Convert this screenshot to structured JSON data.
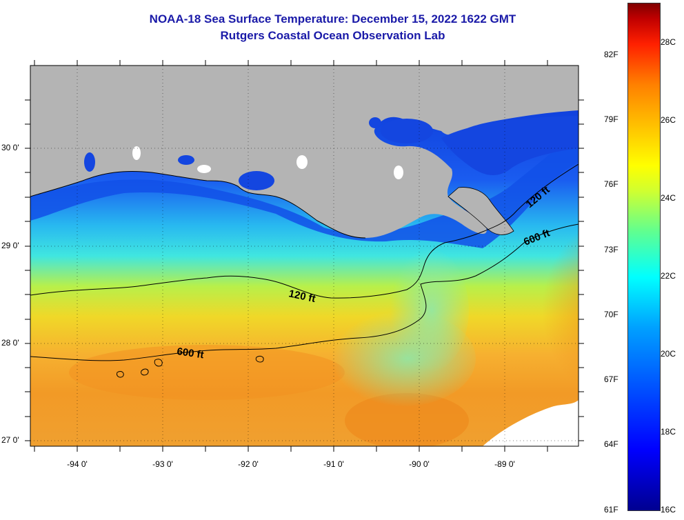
{
  "title": {
    "line1": "NOAA-18 Sea Surface Temperature:  December 15, 2022 1622 GMT",
    "line2": "Rutgers Coastal Ocean Observation Lab"
  },
  "map": {
    "lat_labels": [
      "30 0'",
      "29 0'",
      "28 0'",
      "27 0'"
    ],
    "lon_labels": [
      "-94 0'",
      "-93 0'",
      "-92 0'",
      "-91 0'",
      "-90 0'",
      "-89 0'"
    ],
    "contour_labels": [
      "120 ft",
      "600 ft",
      "120 ft",
      "600 ft"
    ],
    "colors": {
      "land": "#b4b4b4",
      "cold": "#0a3ccd",
      "mid": "#30e0e8",
      "warm": "#f29a24"
    }
  },
  "colorbar": {
    "fahrenheit": [
      "82F",
      "79F",
      "76F",
      "73F",
      "70F",
      "67F",
      "64F",
      "61F"
    ],
    "celsius": [
      "28C",
      "26C",
      "24C",
      "22C",
      "20C",
      "18C",
      "16C"
    ]
  }
}
